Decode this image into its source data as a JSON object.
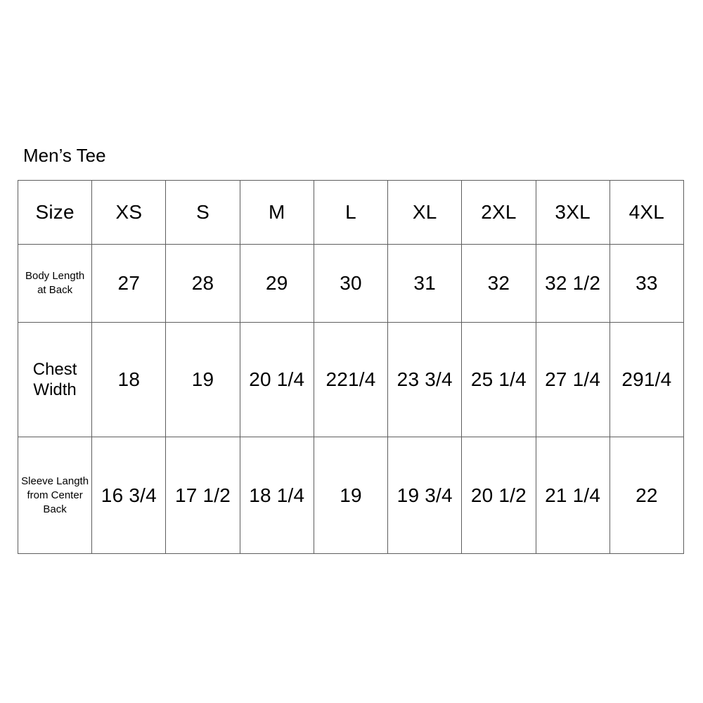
{
  "title": "Men’s Tee",
  "chart_data": {
    "type": "table",
    "title": "Men’s Tee",
    "columns": [
      "Size",
      "XS",
      "S",
      "M",
      "L",
      "XL",
      "2XL",
      "3XL",
      "4XL"
    ],
    "rows": [
      {
        "label": "Body Length at Back",
        "values": [
          "27",
          "28",
          "29",
          "30",
          "31",
          "32",
          "32 1/2",
          "33"
        ]
      },
      {
        "label": "Chest Width",
        "values": [
          "18",
          "19",
          "20 1/4",
          "221/4",
          "23 3/4",
          "25 1/4",
          "27 1/4",
          "291/4"
        ]
      },
      {
        "label": "Sleeve Langth from Center Back",
        "values": [
          "16 3/4",
          "17 1/2",
          "18 1/4",
          "19",
          "19 3/4",
          "20 1/2",
          "21 1/4",
          "22"
        ]
      }
    ],
    "layout": {
      "grid": "on",
      "header_position": "top-row",
      "label_column": "left"
    }
  },
  "colors": {
    "background": "#ffffff",
    "border": "#5e5e5e",
    "text": "#000000"
  }
}
